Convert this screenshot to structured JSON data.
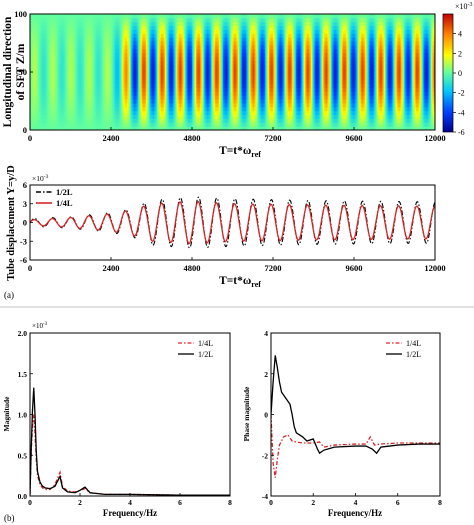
{
  "panel_labels": {
    "a": "(a)",
    "b": "(b)"
  },
  "chart_data": [
    {
      "type": "heatmap",
      "ylabel_line1": "Longitudinal direction",
      "ylabel_line2": "of SFT Z/m",
      "xlabel": "T=t*ω",
      "xlabel_sub": "ref",
      "xlim": [
        0,
        12000
      ],
      "ylim": [
        0,
        100
      ],
      "xticks": [
        "0",
        "2400",
        "4800",
        "7200",
        "9600",
        "12000"
      ],
      "xtick_values": [
        0,
        2400,
        4800,
        7200,
        9600,
        12000
      ],
      "yticks": [
        "0",
        "50",
        "100"
      ],
      "ytick_values": [
        0,
        50,
        100
      ],
      "colorbar": {
        "ticks": [
          "4",
          "2",
          "0",
          "-2",
          "-4",
          "-6"
        ],
        "tick_values": [
          4,
          2,
          0,
          -2,
          -4,
          -6
        ],
        "range": [
          -6,
          6
        ],
        "exponent": "×10",
        "exponent_power": "-3",
        "colors": [
          "#00008f",
          "#0040ff",
          "#00c8ff",
          "#60ffa0",
          "#ffff00",
          "#ff8000",
          "#c00000"
        ]
      },
      "field": {
        "period": 540,
        "low_amplitude_until": 3000,
        "low_amplitude": 1.0,
        "high_amplitude": 5.0,
        "mode_shape": "sine over Z"
      }
    },
    {
      "type": "line",
      "ylabel": "Tube displacement Y=y/D",
      "xlabel": "T=t*ω",
      "xlabel_sub": "ref",
      "exponent": "×10",
      "exponent_power": "-3",
      "xlim": [
        0,
        12000
      ],
      "ylim": [
        -6,
        6
      ],
      "xticks": [
        "0",
        "2400",
        "4800",
        "7200",
        "9600",
        "12000"
      ],
      "xtick_values": [
        0,
        2400,
        4800,
        7200,
        9600,
        12000
      ],
      "yticks": [
        "6",
        "3",
        "0",
        "-3",
        "-6"
      ],
      "ytick_values": [
        6,
        3,
        0,
        -3,
        -6
      ],
      "legend_position": "top-left",
      "series": [
        {
          "name": "1/2L",
          "style": "dash-dot",
          "color": "#000000",
          "period": 540,
          "envelope_x": [
            0,
            1200,
            2400,
            3000,
            3600,
            4800,
            6000,
            8400,
            12000
          ],
          "envelope_y": [
            0.6,
            0.9,
            1.6,
            2.2,
            3.6,
            4.1,
            3.8,
            3.5,
            3.3
          ]
        },
        {
          "name": "1/4L",
          "style": "solid",
          "color": "#d62728",
          "period": 540,
          "envelope_x": [
            0,
            1200,
            2400,
            3000,
            3600,
            4800,
            6000,
            8400,
            12000
          ],
          "envelope_y": [
            0.4,
            0.8,
            1.4,
            2.0,
            3.0,
            3.4,
            3.0,
            2.8,
            2.6
          ]
        }
      ]
    },
    {
      "type": "line",
      "ylabel": "Magnitude",
      "xlabel": "Frequency/Hz",
      "exponent": "×10",
      "exponent_power": "-3",
      "xlim": [
        0,
        8
      ],
      "ylim": [
        0,
        2.0
      ],
      "xticks": [
        "0",
        "2",
        "4",
        "6",
        "8"
      ],
      "xtick_values": [
        0,
        2,
        4,
        6,
        8
      ],
      "yticks": [
        "0.0",
        "0.5",
        "1.0",
        "1.5",
        "2.0"
      ],
      "ytick_values": [
        0,
        0.5,
        1.0,
        1.5,
        2.0
      ],
      "legend_position": "top-right",
      "series": [
        {
          "name": "1/4L",
          "style": "dash-dot",
          "color": "#d62728",
          "x": [
            0,
            0.05,
            0.1,
            0.15,
            0.2,
            0.25,
            0.3,
            0.4,
            0.5,
            0.6,
            0.8,
            1.0,
            1.1,
            1.2,
            1.3,
            1.5,
            1.8,
            2.0,
            2.2,
            2.4,
            3,
            4,
            5,
            6,
            7,
            8
          ],
          "y": [
            0.02,
            0.55,
            0.85,
            1.0,
            0.75,
            0.45,
            0.25,
            0.14,
            0.1,
            0.08,
            0.08,
            0.14,
            0.22,
            0.29,
            0.12,
            0.06,
            0.05,
            0.07,
            0.09,
            0.04,
            0.02,
            0.02,
            0.015,
            0.01,
            0.01,
            0.01
          ]
        },
        {
          "name": "1/2L",
          "style": "solid",
          "color": "#000000",
          "x": [
            0,
            0.05,
            0.1,
            0.15,
            0.2,
            0.25,
            0.3,
            0.4,
            0.5,
            0.6,
            0.8,
            1.0,
            1.1,
            1.2,
            1.3,
            1.5,
            1.8,
            2.0,
            2.2,
            2.4,
            3,
            4,
            5,
            6,
            7,
            8
          ],
          "y": [
            0.02,
            0.6,
            1.05,
            1.33,
            1.0,
            0.55,
            0.3,
            0.17,
            0.12,
            0.1,
            0.09,
            0.12,
            0.18,
            0.24,
            0.1,
            0.05,
            0.04,
            0.07,
            0.11,
            0.04,
            0.02,
            0.02,
            0.015,
            0.01,
            0.01,
            0.01
          ]
        }
      ]
    },
    {
      "type": "line",
      "ylabel": "Phase magnitude",
      "xlabel": "Frequency/Hz",
      "xlim": [
        0,
        8
      ],
      "ylim": [
        -4,
        4
      ],
      "xticks": [
        "0",
        "2",
        "4",
        "6",
        "8"
      ],
      "xtick_values": [
        0,
        2,
        4,
        6,
        8
      ],
      "yticks": [
        "4",
        "2",
        "0",
        "-2",
        "-4"
      ],
      "ytick_values": [
        4,
        2,
        0,
        -2,
        -4
      ],
      "legend_position": "top-right",
      "series": [
        {
          "name": "1/4L",
          "style": "dash-dot",
          "color": "#d62728",
          "x": [
            0,
            0.1,
            0.2,
            0.3,
            0.4,
            0.6,
            0.8,
            1.0,
            1.2,
            1.5,
            2.0,
            2.3,
            2.5,
            3,
            4,
            4.5,
            4.7,
            4.9,
            5.2,
            6,
            7,
            8
          ],
          "y": [
            0,
            -2.4,
            -3.1,
            -2.2,
            -1.5,
            -1.1,
            -1.0,
            -1.3,
            -1.35,
            -1.4,
            -1.4,
            -1.35,
            -1.6,
            -1.5,
            -1.45,
            -1.45,
            -1.1,
            -1.5,
            -1.45,
            -1.4,
            -1.4,
            -1.4
          ]
        },
        {
          "name": "1/2L",
          "style": "solid",
          "color": "#000000",
          "x": [
            0,
            0.1,
            0.2,
            0.3,
            0.4,
            0.5,
            0.7,
            0.9,
            1.0,
            1.1,
            1.2,
            1.5,
            1.7,
            2.0,
            2.2,
            2.3,
            2.5,
            3,
            4,
            4.5,
            4.8,
            5.0,
            5.2,
            6,
            7,
            8
          ],
          "y": [
            0,
            1.6,
            2.9,
            2.3,
            1.6,
            1.1,
            0.8,
            0.5,
            0.0,
            -0.6,
            -0.9,
            -1.1,
            -1.3,
            -1.2,
            -1.7,
            -1.9,
            -1.75,
            -1.6,
            -1.55,
            -1.55,
            -1.7,
            -1.9,
            -1.6,
            -1.5,
            -1.45,
            -1.45
          ]
        }
      ]
    }
  ]
}
